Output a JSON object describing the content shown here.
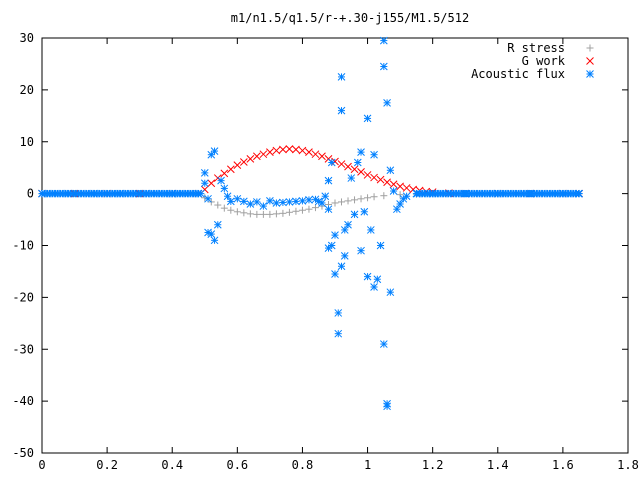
{
  "chart_data": {
    "type": "scatter",
    "title": "m1/n1.5/q1.5/r-+.30-j155/M1.5/512",
    "xlabel": "",
    "ylabel": "",
    "xlim": [
      0,
      1.8
    ],
    "ylim": [
      -50,
      30
    ],
    "x_ticks": [
      "0",
      "0.2",
      "0.4",
      "0.6",
      "0.8",
      "1",
      "1.2",
      "1.4",
      "1.6",
      "1.8"
    ],
    "y_ticks": [
      "30",
      "20",
      "10",
      "0",
      "-10",
      "-20",
      "-30",
      "-40",
      "-50"
    ],
    "grid": false,
    "legend_position": "top-right",
    "series": [
      {
        "name": "R stress",
        "marker": "+",
        "color": "#a0a0a0",
        "points": [
          [
            0.0,
            0
          ],
          [
            0.1,
            0
          ],
          [
            0.2,
            0
          ],
          [
            0.3,
            0
          ],
          [
            0.4,
            0
          ],
          [
            0.48,
            0
          ],
          [
            0.5,
            -0.8
          ],
          [
            0.52,
            -1.6
          ],
          [
            0.54,
            -2.2
          ],
          [
            0.56,
            -2.8
          ],
          [
            0.58,
            -3.2
          ],
          [
            0.6,
            -3.5
          ],
          [
            0.62,
            -3.7
          ],
          [
            0.64,
            -3.9
          ],
          [
            0.66,
            -4.0
          ],
          [
            0.68,
            -4.0
          ],
          [
            0.7,
            -4.0
          ],
          [
            0.72,
            -3.9
          ],
          [
            0.74,
            -3.8
          ],
          [
            0.76,
            -3.6
          ],
          [
            0.78,
            -3.4
          ],
          [
            0.8,
            -3.2
          ],
          [
            0.82,
            -3.0
          ],
          [
            0.84,
            -2.7
          ],
          [
            0.86,
            -2.4
          ],
          [
            0.88,
            -2.1
          ],
          [
            0.9,
            -1.8
          ],
          [
            0.92,
            -1.6
          ],
          [
            0.94,
            -1.4
          ],
          [
            0.96,
            -1.2
          ],
          [
            0.98,
            -1.0
          ],
          [
            1.0,
            -0.8
          ],
          [
            1.02,
            -0.6
          ],
          [
            1.05,
            -0.4
          ],
          [
            1.1,
            -0.2
          ],
          [
            1.15,
            -0.1
          ],
          [
            1.2,
            0
          ],
          [
            1.3,
            0
          ],
          [
            1.4,
            0
          ],
          [
            1.5,
            0
          ],
          [
            1.6,
            0
          ],
          [
            1.65,
            0
          ]
        ]
      },
      {
        "name": "G work",
        "marker": "x",
        "color": "#ff0000",
        "points": [
          [
            0.0,
            0
          ],
          [
            0.1,
            0
          ],
          [
            0.2,
            0
          ],
          [
            0.3,
            0
          ],
          [
            0.4,
            0
          ],
          [
            0.48,
            0
          ],
          [
            0.5,
            0.8
          ],
          [
            0.52,
            2.0
          ],
          [
            0.54,
            3.0
          ],
          [
            0.56,
            3.9
          ],
          [
            0.58,
            4.7
          ],
          [
            0.6,
            5.5
          ],
          [
            0.62,
            6.1
          ],
          [
            0.64,
            6.7
          ],
          [
            0.66,
            7.2
          ],
          [
            0.68,
            7.6
          ],
          [
            0.7,
            8.0
          ],
          [
            0.72,
            8.3
          ],
          [
            0.74,
            8.5
          ],
          [
            0.76,
            8.6
          ],
          [
            0.78,
            8.5
          ],
          [
            0.8,
            8.3
          ],
          [
            0.82,
            8.0
          ],
          [
            0.84,
            7.6
          ],
          [
            0.86,
            7.2
          ],
          [
            0.88,
            6.7
          ],
          [
            0.9,
            6.2
          ],
          [
            0.92,
            5.7
          ],
          [
            0.94,
            5.2
          ],
          [
            0.96,
            4.7
          ],
          [
            0.98,
            4.2
          ],
          [
            1.0,
            3.6
          ],
          [
            1.02,
            3.1
          ],
          [
            1.04,
            2.7
          ],
          [
            1.06,
            2.2
          ],
          [
            1.08,
            1.8
          ],
          [
            1.1,
            1.4
          ],
          [
            1.12,
            1.1
          ],
          [
            1.14,
            0.8
          ],
          [
            1.16,
            0.6
          ],
          [
            1.18,
            0.4
          ],
          [
            1.2,
            0.3
          ],
          [
            1.25,
            0.1
          ],
          [
            1.3,
            0
          ],
          [
            1.4,
            0
          ],
          [
            1.5,
            0
          ],
          [
            1.6,
            0
          ],
          [
            1.65,
            0
          ]
        ]
      },
      {
        "name": "Acoustic flux",
        "marker": "*",
        "color": "#0080ff",
        "points": [
          [
            0.0,
            0
          ],
          [
            0.08,
            0
          ],
          [
            0.16,
            0
          ],
          [
            0.24,
            0
          ],
          [
            0.32,
            0
          ],
          [
            0.4,
            0
          ],
          [
            0.48,
            0
          ],
          [
            0.5,
            4.0
          ],
          [
            0.5,
            2.0
          ],
          [
            0.51,
            -1.0
          ],
          [
            0.51,
            -7.5
          ],
          [
            0.52,
            -7.8
          ],
          [
            0.52,
            7.5
          ],
          [
            0.53,
            8.2
          ],
          [
            0.53,
            -9.0
          ],
          [
            0.54,
            -6.0
          ],
          [
            0.55,
            2.5
          ],
          [
            0.56,
            1.0
          ],
          [
            0.57,
            -0.5
          ],
          [
            0.58,
            -1.5
          ],
          [
            0.6,
            -1.0
          ],
          [
            0.62,
            -1.5
          ],
          [
            0.64,
            -2.0
          ],
          [
            0.66,
            -1.6
          ],
          [
            0.68,
            -2.4
          ],
          [
            0.7,
            -1.4
          ],
          [
            0.72,
            -1.8
          ],
          [
            0.74,
            -1.7
          ],
          [
            0.76,
            -1.6
          ],
          [
            0.78,
            -1.5
          ],
          [
            0.8,
            -1.4
          ],
          [
            0.82,
            -1.2
          ],
          [
            0.84,
            -1.1
          ],
          [
            0.85,
            -1.5
          ],
          [
            0.86,
            -1.8
          ],
          [
            0.87,
            -0.5
          ],
          [
            0.88,
            -3.0
          ],
          [
            0.88,
            -10.5
          ],
          [
            0.88,
            2.5
          ],
          [
            0.89,
            -10.0
          ],
          [
            0.89,
            6.0
          ],
          [
            0.9,
            -15.5
          ],
          [
            0.9,
            -8.0
          ],
          [
            0.91,
            -27.0
          ],
          [
            0.91,
            -23.0
          ],
          [
            0.92,
            -14.0
          ],
          [
            0.92,
            22.5
          ],
          [
            0.92,
            16.0
          ],
          [
            0.93,
            -7.0
          ],
          [
            0.93,
            -12.0
          ],
          [
            0.94,
            -6.0
          ],
          [
            0.95,
            3.0
          ],
          [
            0.96,
            -4.0
          ],
          [
            0.97,
            6.0
          ],
          [
            0.98,
            8.0
          ],
          [
            0.98,
            -11.0
          ],
          [
            0.99,
            -3.5
          ],
          [
            1.0,
            -16.0
          ],
          [
            1.0,
            14.5
          ],
          [
            1.01,
            -7.0
          ],
          [
            1.02,
            7.5
          ],
          [
            1.02,
            -18.0
          ],
          [
            1.03,
            -16.5
          ],
          [
            1.04,
            -10.0
          ],
          [
            1.05,
            -29.0
          ],
          [
            1.05,
            24.5
          ],
          [
            1.05,
            29.5
          ],
          [
            1.06,
            -40.5
          ],
          [
            1.06,
            -41.0
          ],
          [
            1.06,
            17.5
          ],
          [
            1.07,
            -19.0
          ],
          [
            1.07,
            4.5
          ],
          [
            1.08,
            0.5
          ],
          [
            1.09,
            -3.0
          ],
          [
            1.1,
            -2.0
          ],
          [
            1.11,
            -1.0
          ],
          [
            1.12,
            -0.5
          ],
          [
            1.15,
            0
          ],
          [
            1.2,
            0
          ],
          [
            1.3,
            0
          ],
          [
            1.4,
            0
          ],
          [
            1.5,
            0
          ],
          [
            1.6,
            0
          ],
          [
            1.65,
            0
          ]
        ]
      }
    ]
  }
}
